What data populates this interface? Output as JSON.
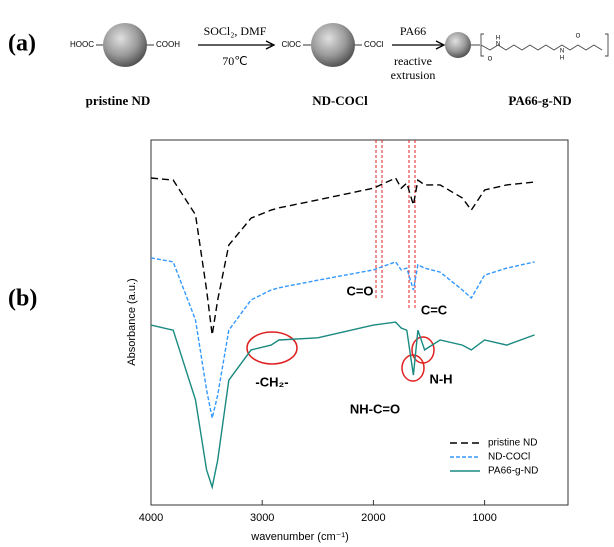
{
  "panel_a": {
    "label": "(a)",
    "scheme": {
      "start_left": "HOOC",
      "start_right": "COOH",
      "step1_above": "SOCl₂, DMF",
      "step1_below": "70℃",
      "mid_left": "ClOC",
      "mid_right": "COCl",
      "step2_above": "PA66",
      "step2_below": [
        "reactive",
        "extrusion"
      ],
      "atoms": [
        "H",
        "N",
        "O",
        "N",
        "H",
        "O"
      ],
      "compounds": [
        "pristine ND",
        "ND-COCl",
        "PA66-g-ND"
      ]
    }
  },
  "panel_b": {
    "label": "(b)"
  },
  "chart_data": {
    "type": "line",
    "xlabel": "wavenumber (cm⁻¹)",
    "ylabel": "Absorbance (a.u.)",
    "x": [
      4000,
      3800,
      3600,
      3500,
      3450,
      3400,
      3300,
      3100,
      2920,
      2850,
      2500,
      2000,
      1800,
      1750,
      1700,
      1640,
      1600,
      1540,
      1400,
      1200,
      1120,
      1000,
      800,
      550
    ],
    "series": [
      {
        "name": "pristine ND",
        "color": "#000000",
        "dash": "long",
        "values": [
          8.96,
          8.9,
          7.95,
          5.89,
          4.66,
          5.62,
          7.12,
          7.86,
          8.08,
          8.14,
          8.36,
          8.68,
          8.96,
          8.68,
          8.82,
          8.22,
          8.9,
          8.77,
          8.77,
          8.41,
          8.08,
          8.63,
          8.77,
          8.85
        ]
      },
      {
        "name": "ND-COCl",
        "color": "#3399ff",
        "dash": "short",
        "values": [
          6.77,
          6.66,
          5.07,
          3.15,
          2.38,
          3.01,
          4.79,
          5.62,
          5.89,
          5.95,
          6.16,
          6.44,
          6.66,
          6.44,
          6.49,
          5.89,
          6.58,
          6.49,
          6.38,
          5.89,
          5.67,
          6.3,
          6.49,
          6.66
        ]
      },
      {
        "name": "PA66-g-ND",
        "color": "#1a8a80",
        "dash": "solid",
        "values": [
          4.93,
          4.79,
          2.88,
          0.96,
          0.49,
          1.23,
          3.42,
          4.25,
          4.38,
          4.52,
          4.58,
          4.93,
          5.01,
          4.85,
          4.79,
          3.56,
          4.79,
          4.25,
          4.52,
          4.38,
          4.25,
          4.52,
          4.38,
          4.66
        ]
      }
    ],
    "xlim": [
      4000,
      250
    ],
    "xticks": [
      4000,
      3000,
      2000,
      1000
    ],
    "ylim": [
      0,
      10
    ],
    "annotations": [
      "C=O",
      "C=C",
      "-CH₂-",
      "NH-C=O",
      "N-H"
    ],
    "legend": "lower right"
  }
}
